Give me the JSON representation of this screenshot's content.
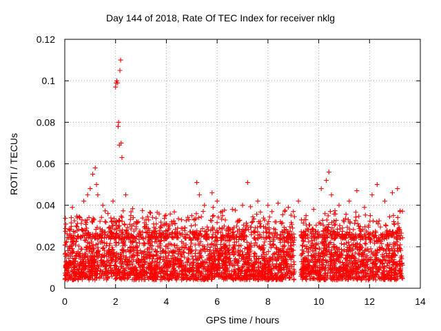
{
  "chart_data": {
    "type": "scatter",
    "title": "Day 144 of 2018, Rate Of TEC Index for receiver nklg",
    "xlabel": "GPS time / hours",
    "ylabel": "ROTI / TECUs",
    "xlim": [
      0,
      14
    ],
    "ylim": [
      0,
      0.12
    ],
    "xticks": [
      0,
      2,
      4,
      6,
      8,
      10,
      12,
      14
    ],
    "xtick_labels": [
      "0",
      "2",
      "4",
      "6",
      "8",
      "10",
      "12",
      "14"
    ],
    "yticks": [
      0,
      0.02,
      0.04,
      0.06,
      0.08,
      0.1,
      0.12
    ],
    "ytick_labels": [
      "0",
      "0.02",
      "0.04",
      "0.06",
      "0.08",
      "0.1",
      "0.12"
    ],
    "grid": true,
    "marker": "+",
    "color": "#ff0000",
    "series": [
      {
        "name": "ROTI",
        "x": [
          0.05,
          0.2,
          0.3,
          0.45,
          0.6,
          0.75,
          0.9,
          1.0,
          1.1,
          1.2,
          1.25,
          1.3,
          1.5,
          1.7,
          1.9,
          2.0,
          2.02,
          2.05,
          2.08,
          2.1,
          2.12,
          2.15,
          2.17,
          2.2,
          2.22,
          2.25,
          2.4,
          2.6,
          2.9,
          3.2,
          3.5,
          3.8,
          4.2,
          4.6,
          5.0,
          5.2,
          5.3,
          5.5,
          5.8,
          6.0,
          6.2,
          6.6,
          7.0,
          7.2,
          7.6,
          8.0,
          8.4,
          8.8,
          9.0,
          9.2,
          9.5,
          9.8,
          10.1,
          10.3,
          10.4,
          10.5,
          10.8,
          11.2,
          11.5,
          11.8,
          12.1,
          12.3,
          12.6,
          12.9,
          13.1,
          13.2
        ],
        "y": [
          0.022,
          0.028,
          0.039,
          0.03,
          0.034,
          0.042,
          0.045,
          0.048,
          0.055,
          0.058,
          0.05,
          0.045,
          0.04,
          0.036,
          0.042,
          0.097,
          0.099,
          0.1,
          0.099,
          0.078,
          0.08,
          0.069,
          0.105,
          0.11,
          0.07,
          0.063,
          0.045,
          0.035,
          0.032,
          0.033,
          0.031,
          0.03,
          0.032,
          0.033,
          0.035,
          0.051,
          0.045,
          0.04,
          0.046,
          0.042,
          0.037,
          0.038,
          0.04,
          0.051,
          0.042,
          0.04,
          0.041,
          0.039,
          0.037,
          0.042,
          0.035,
          0.038,
          0.048,
          0.052,
          0.056,
          0.045,
          0.04,
          0.042,
          0.047,
          0.039,
          0.045,
          0.05,
          0.042,
          0.046,
          0.048,
          0.037
        ]
      }
    ],
    "dense_band": {
      "x_ranges": [
        [
          0,
          9.05
        ],
        [
          9.3,
          13.3
        ]
      ],
      "y_range": [
        0.004,
        0.028
      ]
    }
  }
}
